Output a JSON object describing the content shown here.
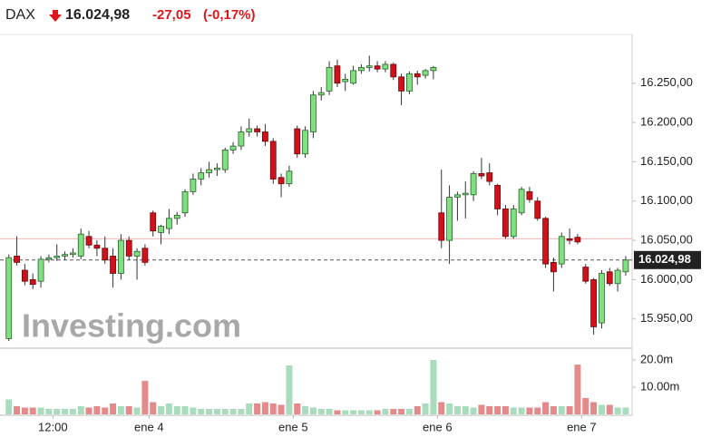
{
  "chart_data": {
    "type": "candlestick",
    "title": "DAX",
    "last_price": {
      "value": 16024.98,
      "label": "16.024,98"
    },
    "change": {
      "value": -27.05,
      "label": "-27,05"
    },
    "change_pct": {
      "value": -0.17,
      "label": "(-0,17%)"
    },
    "prev_close": 16052.03,
    "watermark": "Investing.com",
    "up_color": "#7ee07e",
    "down_color": "#d0101a",
    "volume_up_color": "#a9dcbc",
    "volume_down_color": "#e48a8a",
    "open": [
      15925,
      16030,
      16012,
      16000,
      15998,
      16026,
      16028,
      16030,
      16032,
      16030,
      16055,
      16044,
      16040,
      16030,
      16008,
      16050,
      16030,
      16040,
      16085,
      16060,
      16065,
      16078,
      16085,
      16112,
      16128,
      16136,
      16140,
      16140,
      16165,
      16170,
      16188,
      16192,
      16188,
      16176,
      16130,
      16122,
      16192,
      16160,
      16188,
      16235,
      16240,
      16272,
      16252,
      16250,
      16266,
      16270,
      16272,
      16268,
      16274,
      16258,
      16240,
      16262,
      16260,
      16266,
      16085,
      16050,
      16105,
      16108,
      16108,
      16135,
      16136,
      16120,
      16090,
      16055,
      16085,
      16112,
      16100,
      16078,
      16022,
      16020,
      16052,
      16054,
      16016,
      16000,
      15945,
      16010,
      15995,
      16010
    ],
    "high": [
      16032,
      16055,
      16020,
      16008,
      16030,
      16032,
      16045,
      16036,
      16040,
      16065,
      16062,
      16050,
      16055,
      16040,
      16058,
      16055,
      16040,
      16045,
      16088,
      16070,
      16090,
      16086,
      16115,
      16135,
      16142,
      16150,
      16148,
      16168,
      16175,
      16195,
      16205,
      16196,
      16198,
      16180,
      16135,
      16145,
      16196,
      16195,
      16240,
      16245,
      16278,
      16280,
      16262,
      16272,
      16274,
      16285,
      16278,
      16278,
      16276,
      16262,
      16265,
      16266,
      16268,
      16272,
      16140,
      16120,
      16112,
      16125,
      16138,
      16155,
      16148,
      16122,
      16095,
      16095,
      16118,
      16118,
      16105,
      16080,
      16028,
      16060,
      16065,
      16058,
      16020,
      16002,
      16012,
      16015,
      16015,
      16030
    ],
    "low": [
      15922,
      16018,
      15993,
      15988,
      15990,
      16022,
      16024,
      16025,
      16028,
      16026,
      16040,
      16030,
      16020,
      15990,
      16000,
      16025,
      16000,
      16018,
      16055,
      16045,
      16058,
      16070,
      16080,
      16108,
      16120,
      16130,
      16132,
      16136,
      16160,
      16165,
      16182,
      16182,
      16170,
      16122,
      16105,
      16118,
      16155,
      16155,
      16180,
      16228,
      16235,
      16245,
      16240,
      16248,
      16262,
      16265,
      16264,
      16264,
      16254,
      16222,
      16236,
      16248,
      16256,
      16255,
      16040,
      16020,
      16075,
      16078,
      16100,
      16128,
      16120,
      16082,
      16052,
      16052,
      16082,
      16098,
      16075,
      16015,
      15985,
      16015,
      16045,
      16045,
      15995,
      15930,
      15938,
      15992,
      15985,
      16005
    ],
    "close": [
      16028,
      16022,
      15998,
      15994,
      16026,
      16028,
      16030,
      16032,
      16034,
      16058,
      16044,
      16040,
      16025,
      16008,
      16050,
      16030,
      16036,
      16022,
      16062,
      16068,
      16078,
      16082,
      16112,
      16128,
      16136,
      16140,
      16142,
      16165,
      16170,
      16188,
      16192,
      16188,
      16176,
      16128,
      16122,
      16138,
      16160,
      16190,
      16235,
      16238,
      16270,
      16250,
      16255,
      16266,
      16270,
      16272,
      16268,
      16274,
      16258,
      16240,
      16262,
      16258,
      16266,
      16270,
      16050,
      16105,
      16108,
      16110,
      16135,
      16132,
      16125,
      16090,
      16055,
      16090,
      16115,
      16102,
      16078,
      16020,
      16010,
      16055,
      16050,
      16048,
      15998,
      15940,
      16008,
      15995,
      16012,
      16025
    ],
    "volume": [
      5.5,
      3,
      2.5,
      2.5,
      2.5,
      2,
      2,
      2,
      2,
      3,
      2.5,
      3,
      2.5,
      4,
      3,
      3,
      2.5,
      12.3,
      4.5,
      3,
      4,
      3,
      3,
      2.5,
      2,
      2,
      2,
      2,
      2,
      2,
      4,
      4,
      4.5,
      4,
      3.5,
      18,
      4,
      3,
      2.5,
      2,
      2,
      1.5,
      1.5,
      1.5,
      1.5,
      1.5,
      1.5,
      2,
      2,
      2,
      2,
      3,
      4,
      20,
      4.5,
      4,
      3,
      3,
      2.5,
      3.5,
      3,
      3,
      3,
      2.5,
      2.5,
      2.5,
      2.5,
      4.5,
      3,
      3,
      3,
      18.3,
      6,
      4.5,
      3.5,
      3.5,
      2.5,
      2.5
    ],
    "xlim": [
      -1.1,
      77.8
    ],
    "xticks": [
      {
        "value": 5.5,
        "label": "12:00"
      },
      {
        "value": 17.5,
        "label": "ene 4"
      },
      {
        "value": 35.5,
        "label": "ene 5"
      },
      {
        "value": 53.5,
        "label": "ene 6"
      },
      {
        "value": 71.5,
        "label": "ene 7"
      }
    ],
    "ylim": [
      15914,
      16312
    ],
    "yticks": [
      {
        "value": 15950,
        "label": "15.950,00"
      },
      {
        "value": 16000,
        "label": "16.000,00"
      },
      {
        "value": 16050,
        "label": "16.050,00"
      },
      {
        "value": 16100,
        "label": "16.100,00"
      },
      {
        "value": 16150,
        "label": "16.150,00"
      },
      {
        "value": 16200,
        "label": "16.200,00"
      },
      {
        "value": 16250,
        "label": "16.250,00"
      }
    ],
    "y2lim": [
      0,
      24
    ],
    "y2ticks": [
      {
        "value": 10,
        "label": "10.00m"
      },
      {
        "value": 20,
        "label": "20.0m"
      }
    ]
  }
}
